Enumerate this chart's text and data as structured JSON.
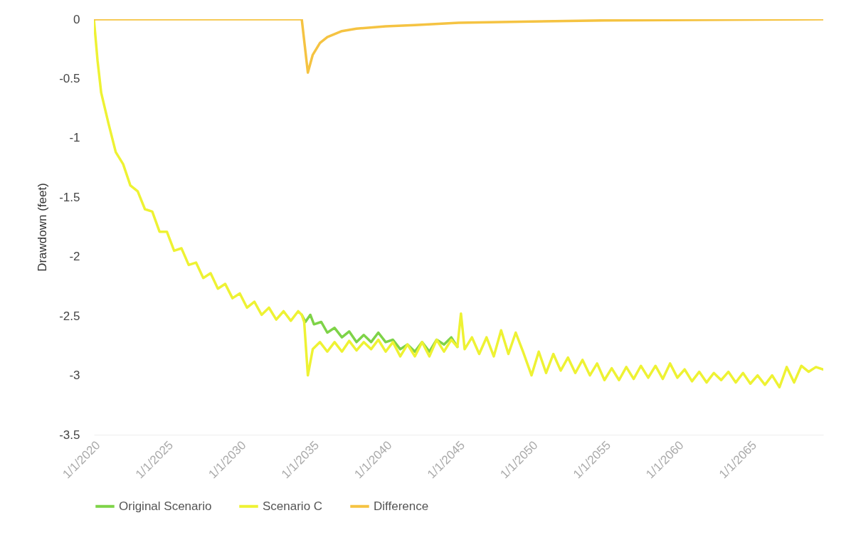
{
  "chart_data": {
    "type": "line",
    "ylabel": "Drawdown (feet)",
    "legend": "bottom",
    "grid": false,
    "xlim": [
      "2020-01-01",
      "2070-01-01"
    ],
    "xticks": [
      {
        "value": "2020-01-01",
        "label": "1/1/2020"
      },
      {
        "value": "2025-01-01",
        "label": "1/1/2025"
      },
      {
        "value": "2030-01-01",
        "label": "1/1/2030"
      },
      {
        "value": "2035-01-01",
        "label": "1/1/2035"
      },
      {
        "value": "2040-01-01",
        "label": "1/1/2040"
      },
      {
        "value": "2045-01-01",
        "label": "1/1/2045"
      },
      {
        "value": "2050-01-01",
        "label": "1/1/2050"
      },
      {
        "value": "2055-01-01",
        "label": "1/1/2055"
      },
      {
        "value": "2060-01-01",
        "label": "1/1/2060"
      },
      {
        "value": "2065-01-01",
        "label": "1/1/2065"
      }
    ],
    "ylim": [
      -3.5,
      0
    ],
    "yticks": [
      -3.5,
      -3,
      -2.5,
      -2,
      -1.5,
      -1,
      -0.5,
      0
    ],
    "series": [
      {
        "name": "Original Scenario",
        "color": "#7ed348",
        "x": [
          "2034-04",
          "2034-07",
          "2034-11",
          "2035-02",
          "2035-08",
          "2036-01",
          "2036-07",
          "2037-01",
          "2037-07",
          "2038-01",
          "2038-07",
          "2039-01",
          "2039-07",
          "2040-01",
          "2040-07",
          "2041-01",
          "2041-07",
          "2042-01",
          "2042-07",
          "2043-01",
          "2043-07",
          "2044-01",
          "2044-07",
          "2044-12"
        ],
        "values": [
          -2.49,
          -2.55,
          -2.49,
          -2.57,
          -2.55,
          -2.64,
          -2.6,
          -2.68,
          -2.63,
          -2.72,
          -2.66,
          -2.72,
          -2.64,
          -2.72,
          -2.7,
          -2.78,
          -2.74,
          -2.8,
          -2.72,
          -2.8,
          -2.7,
          -2.74,
          -2.68,
          -2.76
        ]
      },
      {
        "name": "Scenario C",
        "color": "#eef233",
        "x": [
          "2020-01",
          "2020-04",
          "2020-07",
          "2021-01",
          "2021-07",
          "2022-01",
          "2022-07",
          "2023-01",
          "2023-07",
          "2024-01",
          "2024-07",
          "2025-01",
          "2025-07",
          "2026-01",
          "2026-07",
          "2027-01",
          "2027-07",
          "2028-01",
          "2028-07",
          "2029-01",
          "2029-07",
          "2030-01",
          "2030-07",
          "2031-01",
          "2031-07",
          "2032-01",
          "2032-07",
          "2033-01",
          "2033-07",
          "2034-01",
          "2034-04",
          "2034-06",
          "2034-09",
          "2035-01",
          "2035-07",
          "2036-01",
          "2036-07",
          "2037-01",
          "2037-07",
          "2038-01",
          "2038-07",
          "2039-01",
          "2039-07",
          "2040-01",
          "2040-07",
          "2041-01",
          "2041-07",
          "2042-01",
          "2042-07",
          "2043-01",
          "2043-07",
          "2044-01",
          "2044-07",
          "2044-12",
          "2045-03",
          "2045-06",
          "2045-12",
          "2046-06",
          "2046-12",
          "2047-06",
          "2047-12",
          "2048-06",
          "2048-12",
          "2049-06",
          "2050-01",
          "2050-07",
          "2051-01",
          "2051-07",
          "2052-01",
          "2052-07",
          "2053-01",
          "2053-07",
          "2054-01",
          "2054-07",
          "2055-01",
          "2055-07",
          "2056-01",
          "2056-07",
          "2057-01",
          "2057-07",
          "2058-01",
          "2058-07",
          "2059-01",
          "2059-07",
          "2060-01",
          "2060-07",
          "2061-01",
          "2061-07",
          "2062-01",
          "2062-07",
          "2063-01",
          "2063-07",
          "2064-01",
          "2064-07",
          "2065-01",
          "2065-07",
          "2066-01",
          "2066-07",
          "2067-01",
          "2067-07",
          "2068-01",
          "2068-07",
          "2069-01",
          "2069-07",
          "2070-01"
        ],
        "values": [
          0,
          -0.35,
          -0.62,
          -0.88,
          -1.12,
          -1.22,
          -1.4,
          -1.45,
          -1.6,
          -1.62,
          -1.79,
          -1.79,
          -1.95,
          -1.93,
          -2.07,
          -2.05,
          -2.18,
          -2.14,
          -2.27,
          -2.23,
          -2.35,
          -2.31,
          -2.43,
          -2.38,
          -2.49,
          -2.43,
          -2.53,
          -2.46,
          -2.54,
          -2.46,
          -2.49,
          -2.55,
          -3.0,
          -2.78,
          -2.72,
          -2.8,
          -2.72,
          -2.8,
          -2.71,
          -2.79,
          -2.72,
          -2.78,
          -2.7,
          -2.8,
          -2.72,
          -2.84,
          -2.74,
          -2.84,
          -2.72,
          -2.84,
          -2.7,
          -2.8,
          -2.7,
          -2.76,
          -2.48,
          -2.78,
          -2.68,
          -2.82,
          -2.68,
          -2.84,
          -2.62,
          -2.82,
          -2.64,
          -2.8,
          -3.0,
          -2.8,
          -2.98,
          -2.82,
          -2.96,
          -2.85,
          -2.98,
          -2.87,
          -3.0,
          -2.9,
          -3.04,
          -2.94,
          -3.04,
          -2.93,
          -3.03,
          -2.92,
          -3.02,
          -2.92,
          -3.03,
          -2.9,
          -3.02,
          -2.95,
          -3.05,
          -2.97,
          -3.06,
          -2.98,
          -3.04,
          -2.97,
          -3.06,
          -2.98,
          -3.07,
          -3.0,
          -3.08,
          -3.0,
          -3.1,
          -2.93,
          -3.06,
          -2.92,
          -2.97,
          -2.93,
          -2.95
        ]
      },
      {
        "name": "Difference",
        "color": "#f5c342",
        "x": [
          "2020-01",
          "2034-04",
          "2034-09",
          "2035-01",
          "2035-07",
          "2036-01",
          "2037-01",
          "2038-01",
          "2040-01",
          "2042-01",
          "2045-01",
          "2050-01",
          "2055-01",
          "2070-01"
        ],
        "values": [
          0,
          0,
          -0.45,
          -0.3,
          -0.2,
          -0.15,
          -0.1,
          -0.08,
          -0.06,
          -0.05,
          -0.03,
          -0.02,
          -0.01,
          0
        ]
      }
    ]
  }
}
